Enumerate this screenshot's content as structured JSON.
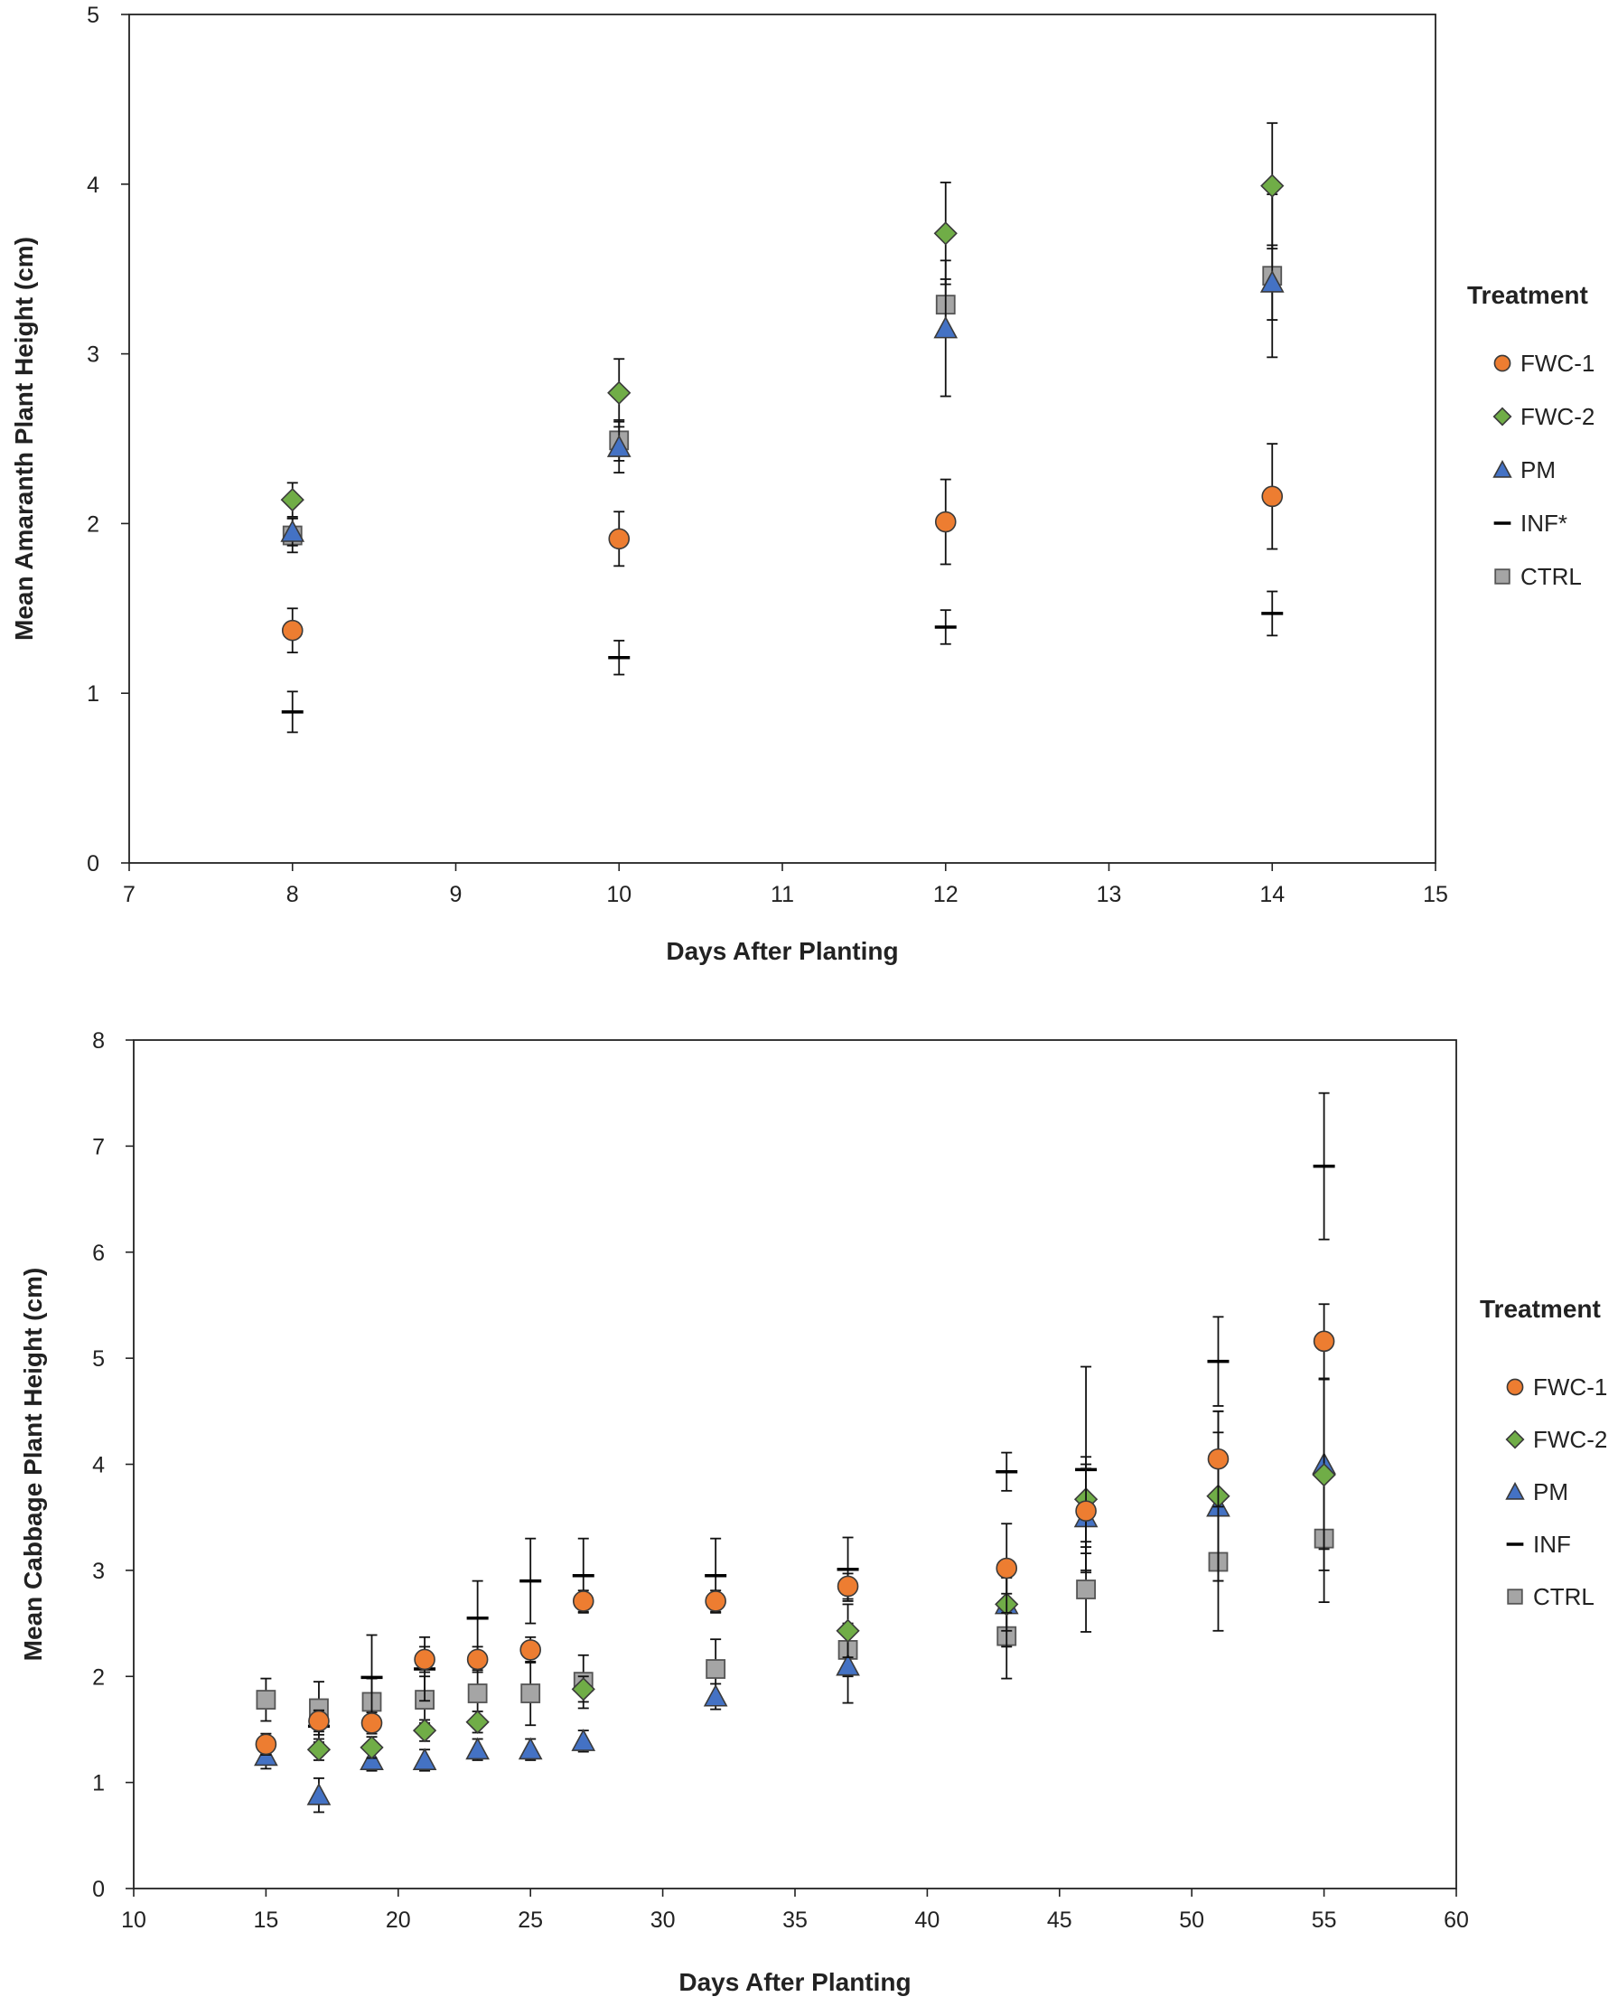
{
  "chart_data": [
    {
      "type": "scatter",
      "xlabel": "Days After Planting",
      "ylabel": "Mean Amaranth Plant Height (cm)",
      "xlim": [
        7,
        15
      ],
      "ylim": [
        0,
        5
      ],
      "xticks": [
        7,
        8,
        9,
        10,
        11,
        12,
        13,
        14,
        15
      ],
      "yticks": [
        0,
        1,
        2,
        3,
        4,
        5
      ],
      "grid": false,
      "legend": {
        "title": "Treatment",
        "position": "right",
        "items": [
          "FWC-1",
          "FWC-2",
          "PM",
          "INF*",
          "CTRL"
        ]
      },
      "series": [
        {
          "name": "FWC-1",
          "marker": "circle",
          "color": "#ED7D31",
          "x": [
            8,
            10,
            12,
            14
          ],
          "y": [
            1.37,
            1.91,
            2.01,
            2.16
          ],
          "err": [
            0.13,
            0.16,
            0.25,
            0.31
          ]
        },
        {
          "name": "FWC-2",
          "marker": "diamond",
          "color": "#70AD47",
          "x": [
            8,
            10,
            12,
            14
          ],
          "y": [
            2.14,
            2.77,
            3.71,
            3.99
          ],
          "err": [
            0.1,
            0.2,
            0.3,
            0.37
          ]
        },
        {
          "name": "PM",
          "marker": "triangle",
          "color": "#4472C4",
          "x": [
            8,
            10,
            12,
            14
          ],
          "y": [
            1.95,
            2.45,
            3.15,
            3.42
          ],
          "err": [
            0.08,
            0.15,
            0.4,
            0.22
          ]
        },
        {
          "name": "INF*",
          "marker": "dash",
          "color": "#000000",
          "x": [
            8,
            10,
            12,
            14
          ],
          "y": [
            0.89,
            1.21,
            1.39,
            1.47
          ],
          "err": [
            0.12,
            0.1,
            0.1,
            0.13
          ]
        },
        {
          "name": "CTRL",
          "marker": "square",
          "color": "#A5A5A5",
          "x": [
            8,
            10,
            12,
            14
          ],
          "y": [
            1.93,
            2.49,
            3.29,
            3.46
          ],
          "err": [
            0.1,
            0.12,
            0.15,
            0.48
          ]
        }
      ]
    },
    {
      "type": "scatter",
      "xlabel": "Days After Planting",
      "ylabel": "Mean Cabbage Plant Height (cm)",
      "xlim": [
        10,
        60
      ],
      "ylim": [
        0,
        8
      ],
      "xticks": [
        10,
        15,
        20,
        25,
        30,
        35,
        40,
        45,
        50,
        55,
        60
      ],
      "yticks": [
        0,
        1,
        2,
        3,
        4,
        5,
        6,
        7,
        8
      ],
      "grid": false,
      "legend": {
        "title": "Treatment",
        "position": "right",
        "items": [
          "FWC-1",
          "FWC-2",
          "PM",
          "INF",
          "CTRL"
        ]
      },
      "series": [
        {
          "name": "FWC-1",
          "marker": "circle",
          "color": "#ED7D31",
          "x": [
            15,
            17,
            19,
            21,
            23,
            25,
            27,
            32,
            37,
            43,
            46,
            51,
            55
          ],
          "y": [
            1.36,
            1.58,
            1.56,
            2.16,
            2.16,
            2.25,
            2.71,
            2.71,
            2.85,
            3.02,
            3.56,
            4.05,
            5.16
          ],
          "err": [
            0.1,
            0.1,
            0.1,
            0.12,
            0.12,
            0.12,
            0.1,
            0.1,
            0.12,
            0.42,
            0.4,
            0.45,
            0.35
          ]
        },
        {
          "name": "FWC-2",
          "marker": "diamond",
          "color": "#70AD47",
          "x": [
            17,
            19,
            21,
            23,
            27,
            37,
            43,
            46,
            51,
            55
          ],
          "y": [
            1.31,
            1.33,
            1.49,
            1.57,
            1.88,
            2.43,
            2.68,
            3.67,
            3.7,
            3.9
          ],
          "err": [
            0.1,
            0.1,
            0.1,
            0.1,
            0.12,
            0.25,
            0.25,
            0.4,
            0.8,
            0.9
          ]
        },
        {
          "name": "PM",
          "marker": "triangle",
          "color": "#4472C4",
          "x": [
            15,
            17,
            19,
            21,
            23,
            25,
            27,
            32,
            37,
            43,
            46,
            51,
            55
          ],
          "y": [
            1.25,
            0.88,
            1.21,
            1.21,
            1.31,
            1.31,
            1.39,
            1.81,
            2.1,
            2.68,
            3.5,
            3.6,
            4.0
          ],
          "err": [
            0.12,
            0.16,
            0.1,
            0.1,
            0.1,
            0.1,
            0.1,
            0.12,
            0.35,
            0.4,
            0.5,
            0.7,
            0.8
          ]
        },
        {
          "name": "INF",
          "marker": "dash",
          "color": "#000000",
          "x": [
            17,
            19,
            21,
            23,
            25,
            27,
            32,
            37,
            43,
            46,
            51,
            55
          ],
          "y": [
            1.53,
            1.99,
            2.07,
            2.55,
            2.9,
            2.95,
            2.95,
            3.01,
            3.93,
            3.95,
            4.97,
            6.81
          ],
          "err": [
            0.15,
            0.4,
            0.3,
            0.35,
            0.4,
            0.35,
            0.35,
            0.3,
            0.18,
            0.97,
            0.42,
            0.69
          ]
        },
        {
          "name": "CTRL",
          "marker": "square",
          "color": "#A5A5A5",
          "x": [
            15,
            17,
            19,
            21,
            23,
            25,
            27,
            32,
            37,
            43,
            46,
            51,
            55
          ],
          "y": [
            1.78,
            1.7,
            1.76,
            1.78,
            1.84,
            1.84,
            1.95,
            2.07,
            2.25,
            2.38,
            2.82,
            3.08,
            3.3
          ],
          "err": [
            0.2,
            0.25,
            0.22,
            0.22,
            0.22,
            0.3,
            0.25,
            0.28,
            0.25,
            0.4,
            0.4,
            0.65,
            0.6
          ]
        }
      ]
    }
  ]
}
